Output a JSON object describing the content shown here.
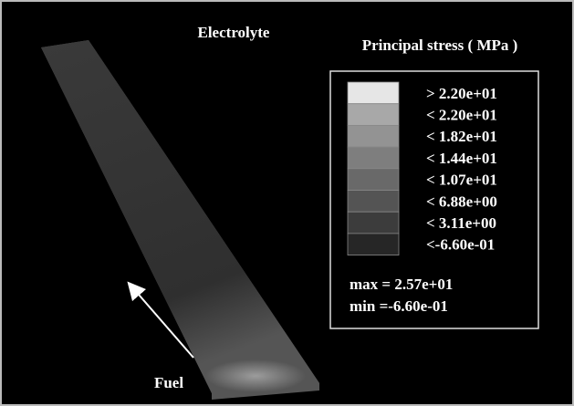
{
  "figure": {
    "plate_label": "Electrolyte",
    "arrow_label": "Fuel",
    "legend": {
      "title": "Principal stress ( MPa )",
      "entries": [
        {
          "label": "> 2.20e+01",
          "color": "#e6e6e6"
        },
        {
          "label": "< 2.20e+01",
          "color": "#a8a8a8"
        },
        {
          "label": "< 1.82e+01",
          "color": "#939393"
        },
        {
          "label": "< 1.44e+01",
          "color": "#7e7e7e"
        },
        {
          "label": "< 1.07e+01",
          "color": "#696969"
        },
        {
          "label": "< 6.88e+00",
          "color": "#545454"
        },
        {
          "label": "< 3.11e+00",
          "color": "#3c3c3c"
        },
        {
          "label": "<-6.60e-01",
          "color": "#262626"
        }
      ],
      "max": "max = 2.57e+01",
      "min": "min =-6.60e-01"
    }
  }
}
